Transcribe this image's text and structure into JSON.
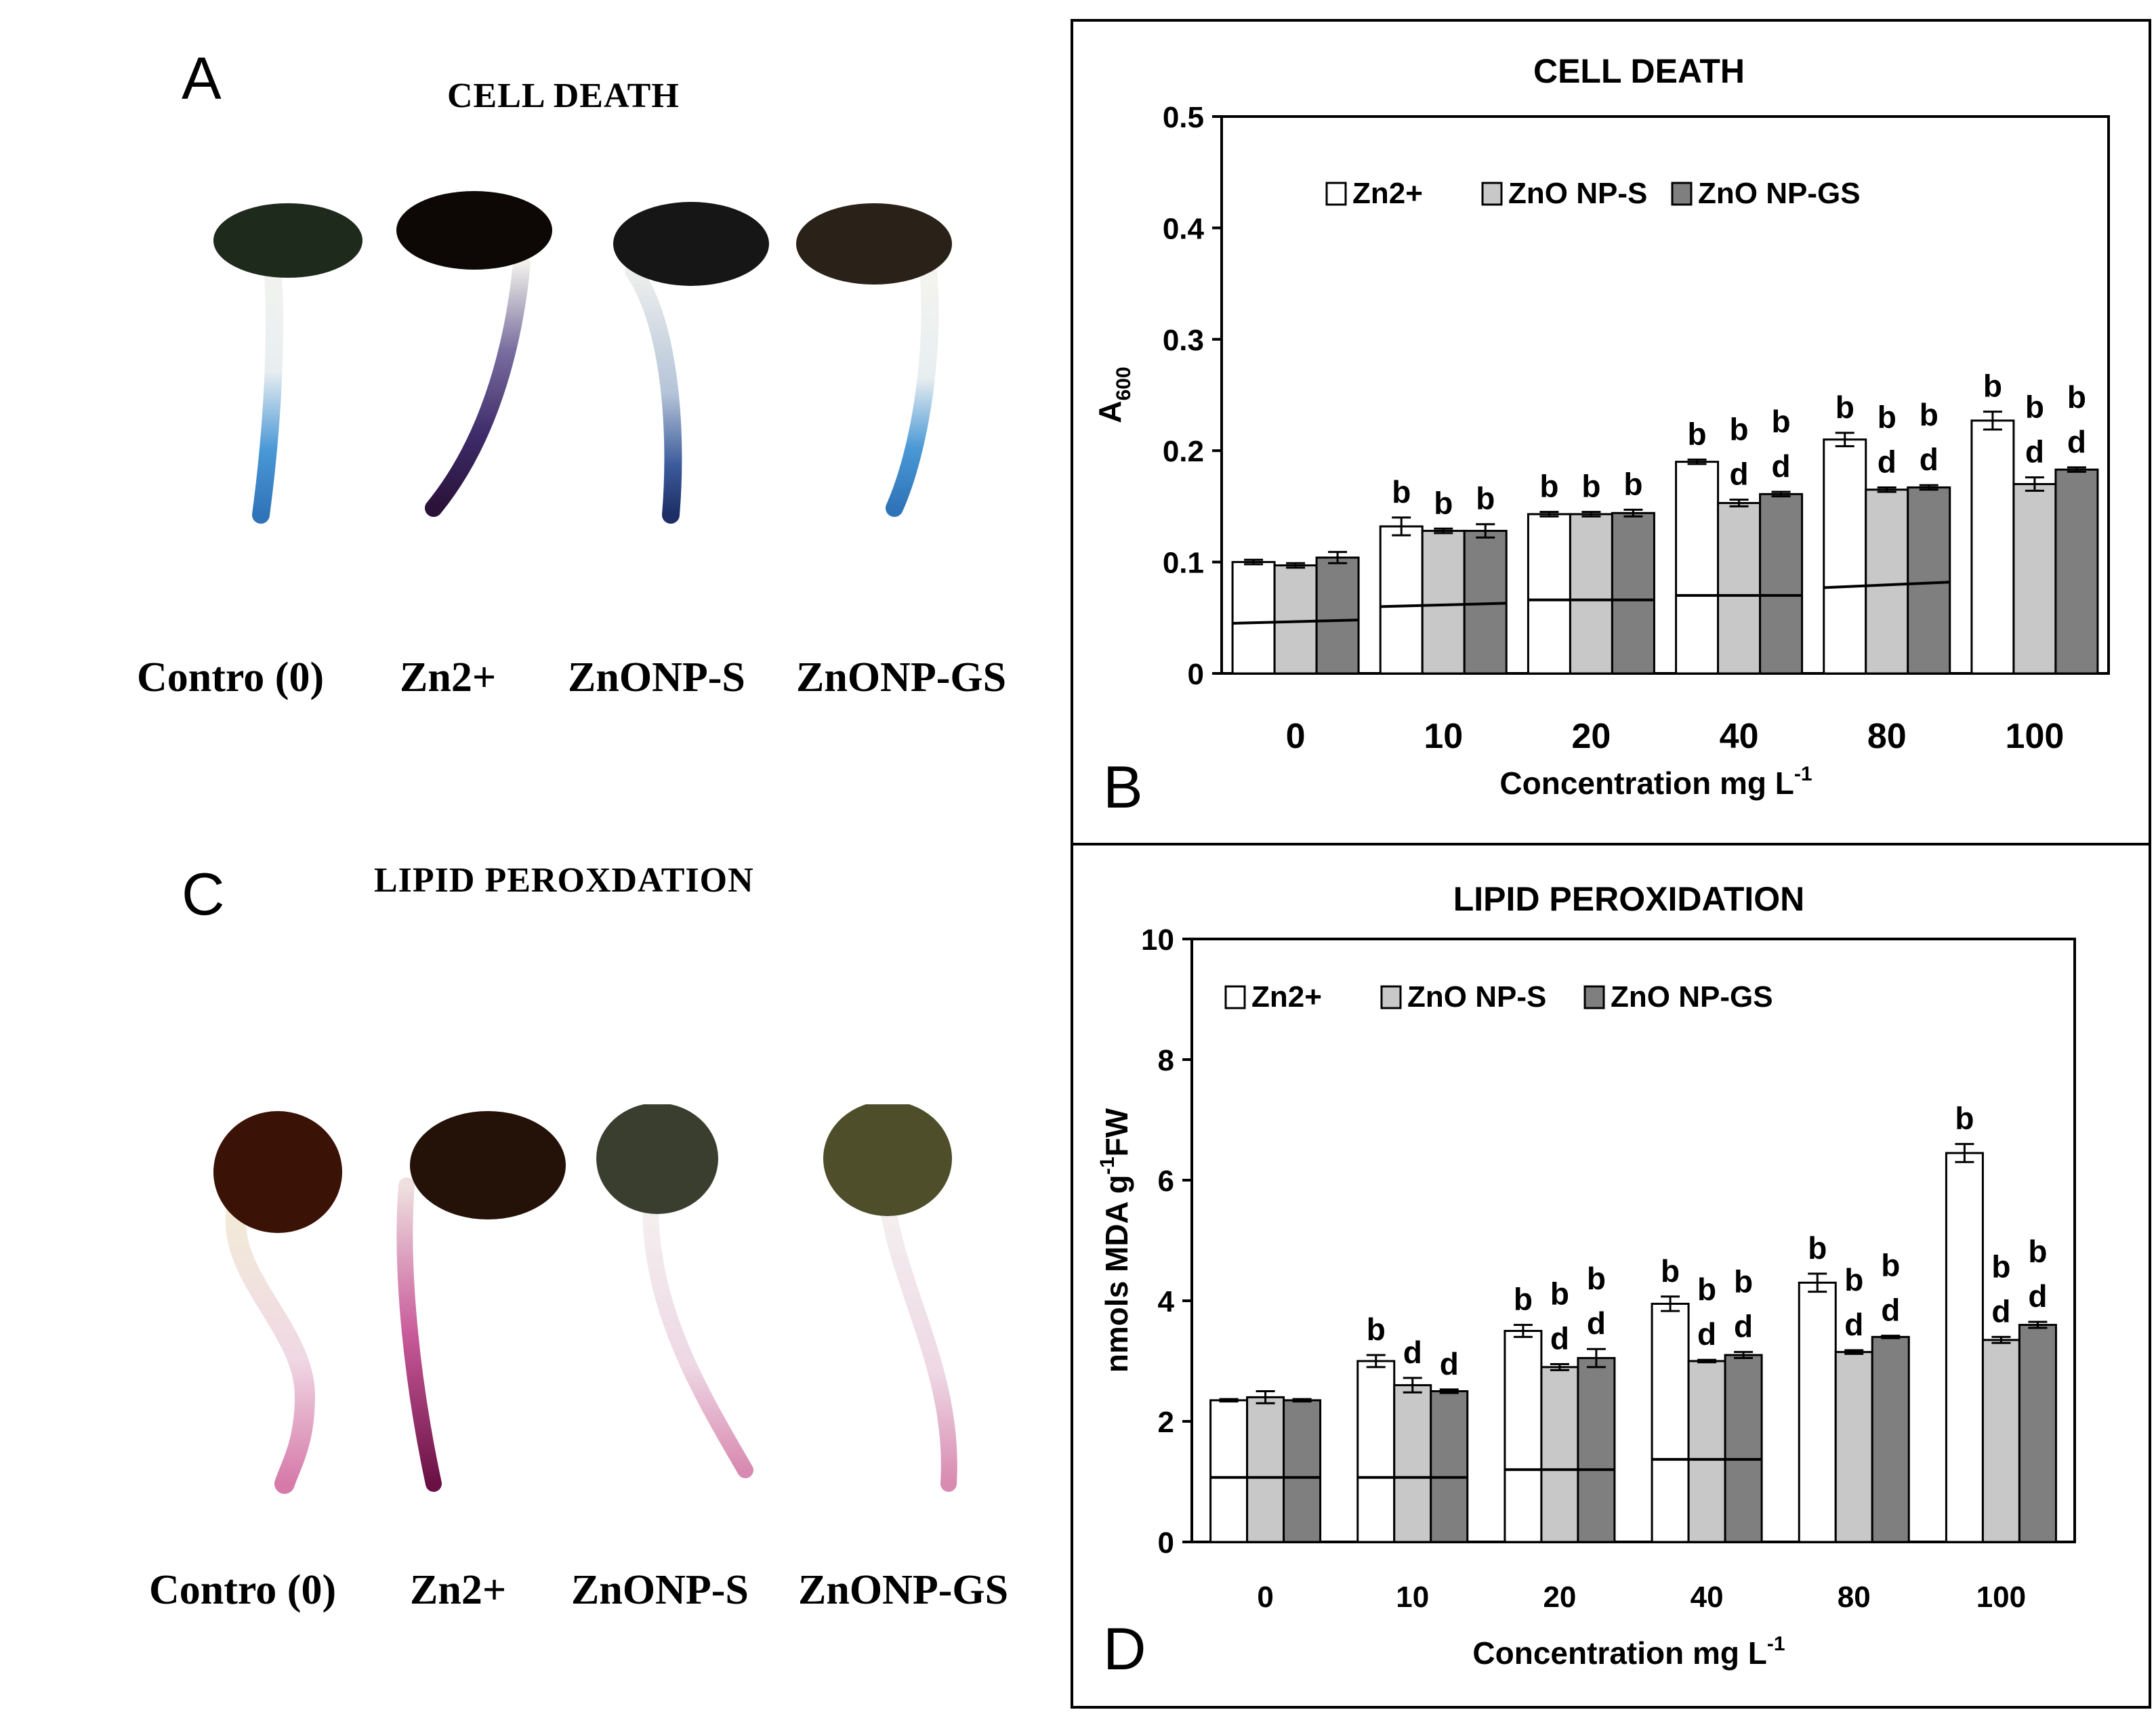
{
  "panels": {
    "a": {
      "letter": "A",
      "title": "CELL DEATH",
      "labels": [
        "Contro (0)",
        "Zn2+",
        "ZnONP-S",
        "ZnONP-GS"
      ]
    },
    "b": {
      "letter": "B"
    },
    "c": {
      "letter": "C",
      "title": "LIPID PEROXDATION",
      "labels": [
        "Contro (0)",
        "Zn2+",
        "ZnONP-S",
        "ZnONP-GS"
      ]
    },
    "d": {
      "letter": "D"
    }
  },
  "colors": {
    "zn2": "#ffffff",
    "np_s": "#c8c8c8",
    "np_gs": "#7f7f7f",
    "stain_blue": "#2f7fc7",
    "stain_pink": "#c85a9a"
  },
  "icons": [
    "seedling-image"
  ],
  "chart_data": [
    {
      "type": "bar",
      "title": "CELL DEATH",
      "xlabel": "Concentration mg L",
      "xlabel_sup": "-1",
      "ylabel": "A",
      "ylabel_sub": "600",
      "ylim": [
        0,
        0.5
      ],
      "yticks": [
        "0",
        "0.1",
        "0.2",
        "0.3",
        "0.4",
        "0.5"
      ],
      "ytick_values": [
        0,
        0.1,
        0.2,
        0.3,
        0.4,
        0.5
      ],
      "categories": [
        "0",
        "10",
        "20",
        "40",
        "80",
        "100"
      ],
      "legend": "top-center",
      "series": [
        {
          "name": "Zn2+",
          "values": [
            0.1,
            0.132,
            0.143,
            0.19,
            0.21,
            0.227
          ],
          "errors": [
            0.002,
            0.008,
            0.002,
            0.002,
            0.006,
            0.008
          ],
          "letters": [
            [],
            [
              "b"
            ],
            [
              "b"
            ],
            [
              "b"
            ],
            [
              "b"
            ],
            [
              "b"
            ]
          ]
        },
        {
          "name": "ZnO NP-S",
          "values": [
            0.097,
            0.128,
            0.143,
            0.153,
            0.165,
            0.17
          ],
          "errors": [
            0.002,
            0.002,
            0.002,
            0.003,
            0.002,
            0.006
          ],
          "letters": [
            [],
            [
              "b"
            ],
            [
              "b"
            ],
            [
              "b",
              "d"
            ],
            [
              "b",
              "d"
            ],
            [
              "b",
              "d"
            ]
          ]
        },
        {
          "name": "ZnO NP-GS",
          "values": [
            0.104,
            0.128,
            0.144,
            0.161,
            0.167,
            0.183
          ],
          "errors": [
            0.005,
            0.006,
            0.003,
            0.002,
            0.002,
            0.002
          ],
          "letters": [
            [],
            [
              "b"
            ],
            [
              "b"
            ],
            [
              "b",
              "d"
            ],
            [
              "b",
              "d"
            ],
            [
              "b",
              "d"
            ]
          ]
        }
      ],
      "reference_lines": [
        [
          0.045,
          0.048
        ],
        [
          0.06,
          0.063
        ],
        [
          0.066,
          0.066
        ],
        [
          0.07,
          0.07
        ],
        [
          0.077,
          0.082
        ],
        [
          0,
          0
        ]
      ]
    },
    {
      "type": "bar",
      "title": "LIPID PEROXIDATION",
      "xlabel": "Concentration mg L",
      "xlabel_sup": "-1",
      "ylabel": "nmols MDA  g",
      "ylabel_sup": "-1",
      "ylabel_tail": "FW",
      "ylim": [
        0,
        10
      ],
      "yticks": [
        "0",
        "2",
        "4",
        "6",
        "8",
        "10"
      ],
      "ytick_values": [
        0,
        2,
        4,
        6,
        8,
        10
      ],
      "categories": [
        "0",
        "10",
        "20",
        "40",
        "80",
        "100"
      ],
      "legend": "top-center",
      "series": [
        {
          "name": "Zn2+",
          "values": [
            2.35,
            3.0,
            3.5,
            3.95,
            4.3,
            6.45
          ],
          "errors": [
            0.02,
            0.1,
            0.1,
            0.12,
            0.15,
            0.15
          ],
          "letters": [
            [],
            [
              "b"
            ],
            [
              "b"
            ],
            [
              "b"
            ],
            [
              "b"
            ],
            [
              "b"
            ]
          ]
        },
        {
          "name": "ZnO NP-S",
          "values": [
            2.4,
            2.6,
            2.9,
            3.0,
            3.15,
            3.35
          ],
          "errors": [
            0.1,
            0.12,
            0.05,
            0.02,
            0.03,
            0.05
          ],
          "letters": [
            [],
            [
              "d"
            ],
            [
              "b",
              "d"
            ],
            [
              "b",
              "d"
            ],
            [
              "b",
              "d"
            ],
            [
              "b",
              "d"
            ]
          ]
        },
        {
          "name": "ZnO NP-GS",
          "values": [
            2.35,
            2.5,
            3.05,
            3.1,
            3.4,
            3.6
          ],
          "errors": [
            0.02,
            0.03,
            0.15,
            0.05,
            0.02,
            0.05
          ],
          "letters": [
            [],
            [
              "d"
            ],
            [
              "b",
              "d"
            ],
            [
              "b",
              "d"
            ],
            [
              "b",
              "d"
            ],
            [
              "b",
              "d"
            ]
          ]
        }
      ],
      "reference_lines": [
        [
          1.07,
          1.07
        ],
        [
          1.07,
          1.07
        ],
        [
          1.2,
          1.2
        ],
        [
          1.37,
          1.37
        ],
        [
          0,
          0
        ],
        [
          0,
          0
        ]
      ]
    }
  ]
}
